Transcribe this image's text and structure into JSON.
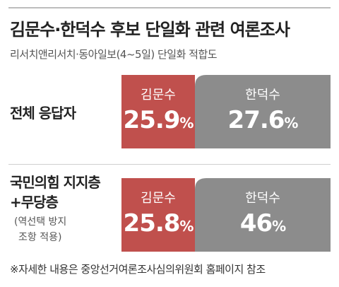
{
  "title": "김문수·한덕수 후보 단일화 관련 여론조사",
  "subtitle": "리서치앤리서치·동아일보(4~5일) 단일화 적합도",
  "chart_data": {
    "type": "table",
    "columns": [
      "김문수",
      "한덕수"
    ],
    "rows": [
      {
        "label": "전체 응답자",
        "values": [
          25.9,
          27.6
        ]
      },
      {
        "label": "국민의힘 지지층 +무당층",
        "note": "(역선택 방지 조항 적용)",
        "values": [
          25.8,
          46
        ]
      }
    ],
    "unit": "%",
    "colors": {
      "김문수": "#c0504d",
      "한덕수": "#8c8c8c"
    }
  },
  "rows": [
    {
      "label_lines": [
        "전체 응답자"
      ],
      "note_lines": [],
      "cells": [
        {
          "name": "김문수",
          "value": "25.9",
          "unit": "%"
        },
        {
          "name": "한덕수",
          "value": "27.6",
          "unit": "%"
        }
      ]
    },
    {
      "label_lines": [
        "국민의힘 지지층",
        "+무당층"
      ],
      "note_lines": [
        "(역선택 방지",
        " 조항 적용)"
      ],
      "cells": [
        {
          "name": "김문수",
          "value": "25.8",
          "unit": "%"
        },
        {
          "name": "한덕수",
          "value": "46",
          "unit": "%"
        }
      ]
    }
  ],
  "footnote": "※자세한 내용은 중앙선거여론조사심의위원회 홈페이지 참조"
}
